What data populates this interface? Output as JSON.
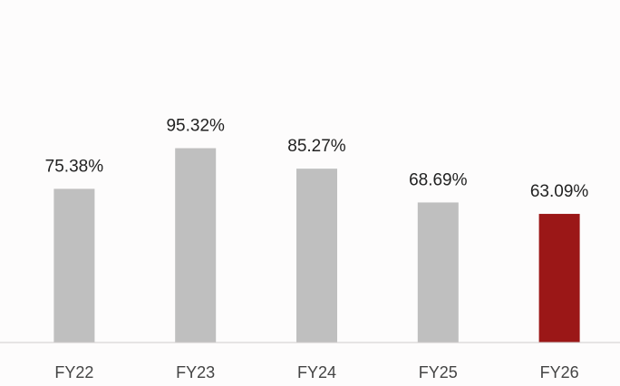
{
  "chart_data": {
    "type": "bar",
    "categories": [
      "FY22",
      "FY23",
      "FY24",
      "FY25",
      "FY26"
    ],
    "values": [
      75.38,
      95.32,
      85.27,
      68.69,
      63.09
    ],
    "value_labels": [
      "75.38%",
      "95.32%",
      "85.27%",
      "68.69%",
      "63.09%"
    ],
    "colors": [
      "#bfbfbf",
      "#bfbfbf",
      "#bfbfbf",
      "#bfbfbf",
      "#9b1717"
    ],
    "ylim": [
      0,
      100
    ]
  }
}
